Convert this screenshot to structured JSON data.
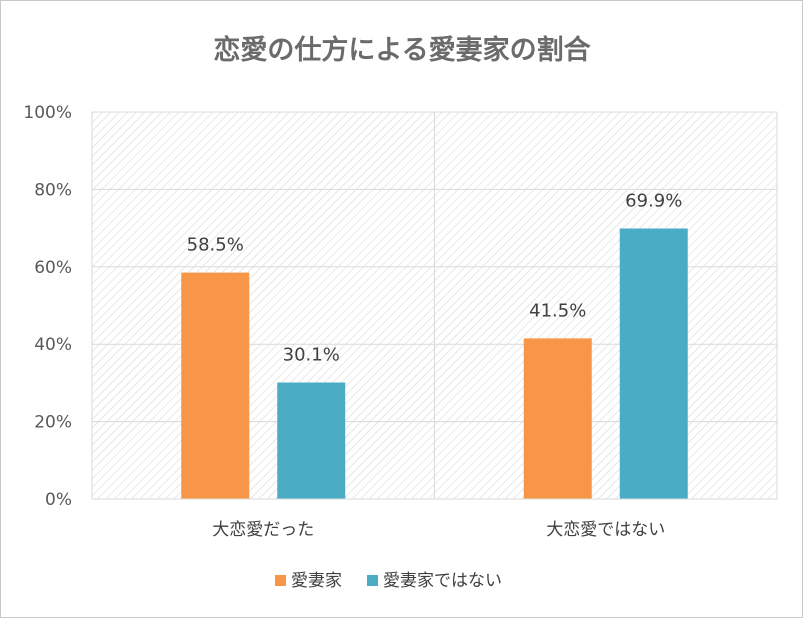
{
  "chart_data": {
    "type": "bar",
    "title": "恋愛の仕方による愛妻家の割合",
    "categories": [
      "大恋愛だった",
      "大恋愛ではない"
    ],
    "series": [
      {
        "name": "愛妻家",
        "values": [
          58.5,
          41.5
        ],
        "color": "#f79646"
      },
      {
        "name": "愛妻家ではない",
        "values": [
          30.1,
          69.9
        ],
        "color": "#4bacc6"
      }
    ],
    "data_labels": [
      [
        "58.5%",
        "41.5%"
      ],
      [
        "30.1%",
        "69.9%"
      ]
    ],
    "ylim": [
      0,
      100
    ],
    "yticks": [
      "0%",
      "20%",
      "40%",
      "60%",
      "80%",
      "100%"
    ],
    "grid": true,
    "legend": "bottom"
  }
}
